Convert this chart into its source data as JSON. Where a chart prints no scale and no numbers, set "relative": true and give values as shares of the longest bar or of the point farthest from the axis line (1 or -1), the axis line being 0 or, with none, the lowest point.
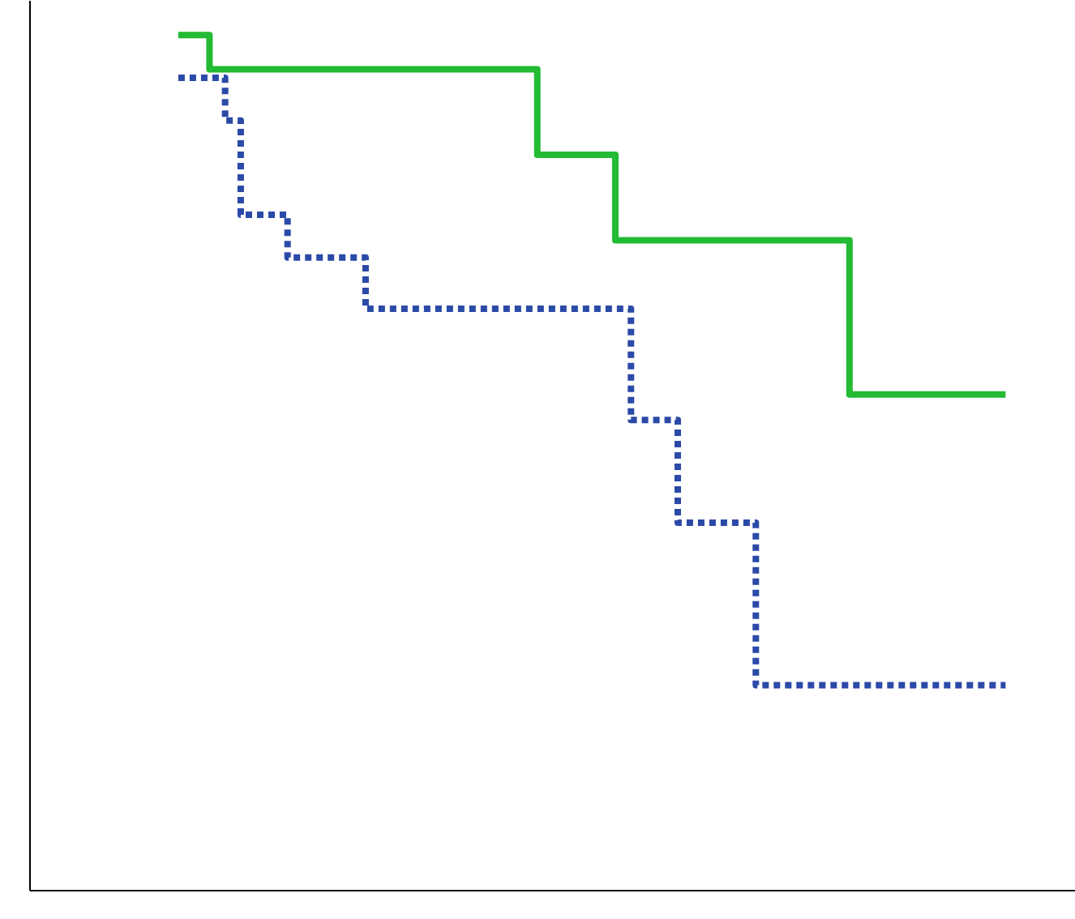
{
  "chart_data": {
    "type": "step",
    "relative": true,
    "categories": [
      null,
      null,
      null,
      null,
      null,
      null,
      null,
      null,
      null,
      null,
      null,
      null,
      null,
      null,
      null,
      null,
      null,
      null,
      null,
      null,
      null,
      null,
      null,
      null,
      null,
      null,
      null,
      null,
      null,
      null,
      null,
      null,
      null,
      null,
      null,
      null,
      null,
      null,
      null,
      null,
      null,
      null,
      null,
      null,
      null,
      null,
      null,
      null,
      null,
      null,
      null,
      null,
      null,
      null
    ],
    "series": [
      {
        "color": "#22bb33",
        "line_style": "solid",
        "values": [
          1,
          1,
          0.96,
          0.96,
          0.96,
          0.96,
          0.96,
          0.96,
          0.96,
          0.96,
          0.96,
          0.96,
          0.96,
          0.96,
          0.96,
          0.96,
          0.96,
          0.96,
          0.96,
          0.96,
          0.96,
          0.96,
          0.96,
          0.86,
          0.86,
          0.86,
          0.86,
          0.86,
          0.76,
          0.76,
          0.76,
          0.76,
          0.76,
          0.76,
          0.76,
          0.76,
          0.76,
          0.76,
          0.76,
          0.76,
          0.76,
          0.76,
          0.76,
          0.58,
          0.58,
          0.58,
          0.58,
          0.58,
          0.58,
          0.58,
          0.58,
          0.58,
          0.58,
          0.58
        ]
      },
      {
        "color": "#2b4aa8",
        "line_style": "dashed",
        "values": [
          0.95,
          0.95,
          0.95,
          0.9,
          0.79,
          0.79,
          0.79,
          0.74,
          0.74,
          0.74,
          0.74,
          0.74,
          0.68,
          0.68,
          0.68,
          0.68,
          0.68,
          0.68,
          0.68,
          0.68,
          0.68,
          0.68,
          0.68,
          0.68,
          0.68,
          0.68,
          0.68,
          0.68,
          0.68,
          0.55,
          0.55,
          0.55,
          0.43,
          0.43,
          0.43,
          0.43,
          0.43,
          0.24,
          0.24,
          0.24,
          0.24,
          0.24,
          0.24,
          0.24,
          0.24,
          0.24,
          0.24,
          0.24,
          0.24,
          0.24,
          0.24,
          0.24,
          0.24,
          0.24
        ]
      }
    ]
  }
}
